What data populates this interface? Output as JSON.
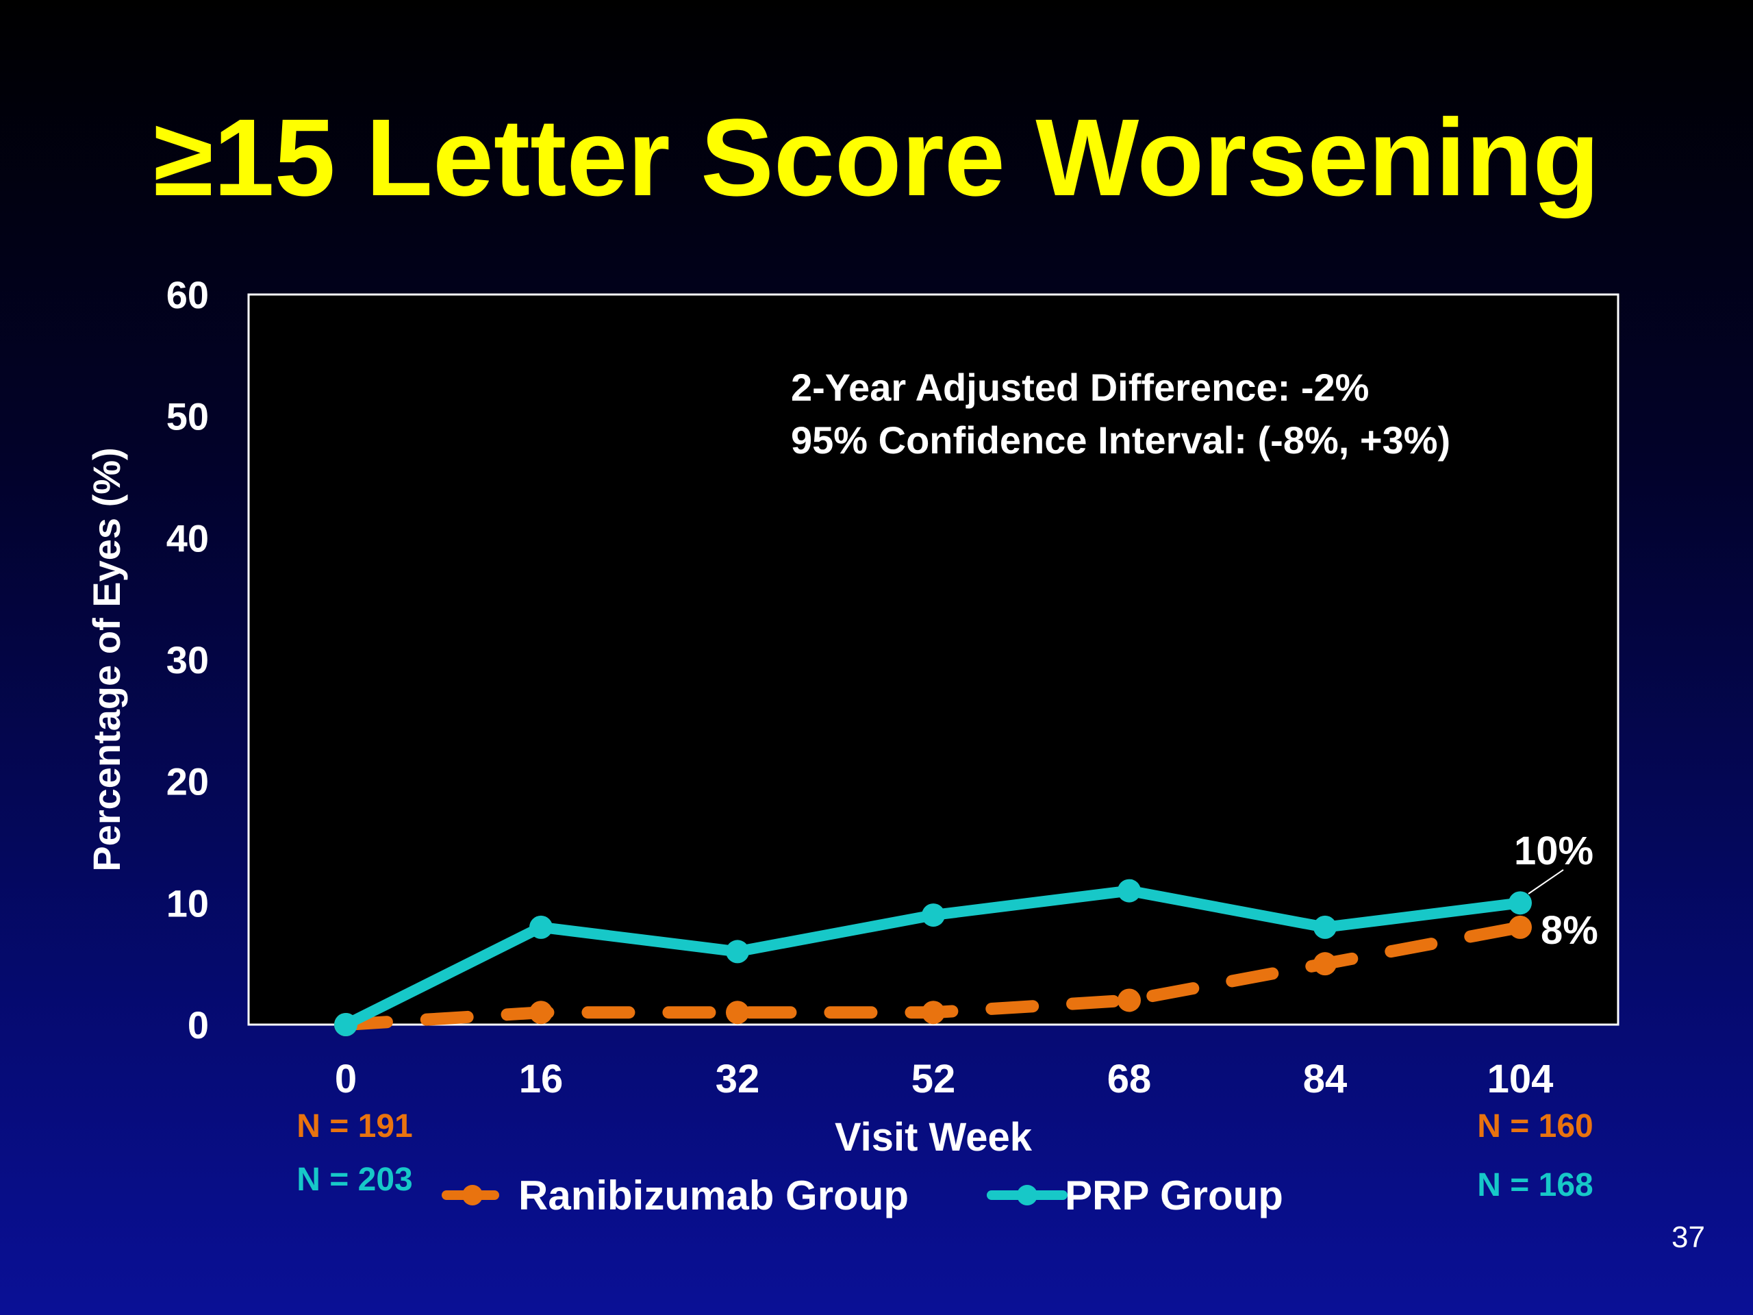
{
  "slide": {
    "title": "≥15 Letter Score Worsening",
    "page_number": "37"
  },
  "colors": {
    "background_top": "#000000",
    "background_bottom": "#0a1096",
    "title": "#ffff00",
    "plot_background": "#000000",
    "ranibizumab": "#e9730f",
    "prp": "#17c8c8",
    "text": "#ffffff"
  },
  "chart_data": {
    "type": "line",
    "title": "",
    "xlabel": "Visit Week",
    "ylabel": "Percentage of Eyes (%)",
    "x": [
      0,
      16,
      32,
      52,
      68,
      84,
      104
    ],
    "x_tick_labels": [
      "0",
      "16",
      "32",
      "52",
      "68",
      "84",
      "104"
    ],
    "ylim": [
      0,
      60
    ],
    "y_ticks": [
      0,
      10,
      20,
      30,
      40,
      50,
      60
    ],
    "grid": false,
    "legend_position": "bottom-center",
    "series": [
      {
        "name": "Ranibizumab Group",
        "color": "#e9730f",
        "style": "dashed",
        "marker": "circle",
        "values": [
          0,
          1,
          1,
          1,
          2,
          5,
          8
        ],
        "end_label": "8%",
        "n_start": "N = 191",
        "n_end": "N = 160"
      },
      {
        "name": "PRP Group",
        "color": "#17c8c8",
        "style": "solid",
        "marker": "circle",
        "values": [
          0,
          8,
          6,
          9,
          11,
          8,
          10
        ],
        "end_label": "10%",
        "n_start": "N = 203",
        "n_end": "N = 168"
      }
    ],
    "annotations": [
      "2-Year Adjusted Difference: -2%",
      "95% Confidence Interval: (-8%, +3%)"
    ]
  }
}
